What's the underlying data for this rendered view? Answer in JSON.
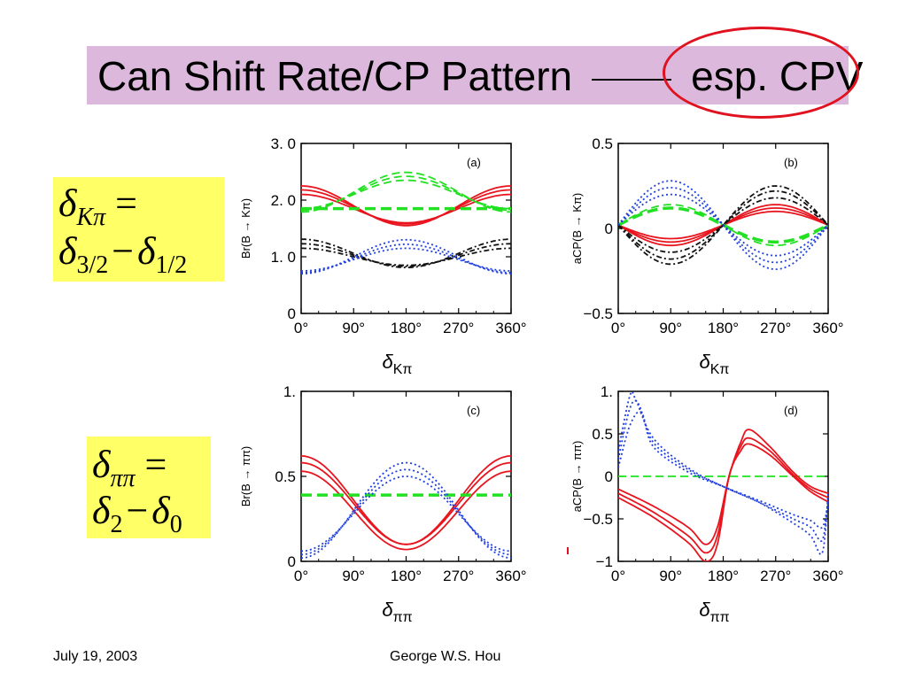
{
  "slide": {
    "title_left": "Can Shift Rate/CP Pattern",
    "title_right": "esp. CPV",
    "footer_date": "July 19, 2003",
    "footer_author": "George W.S. Hou"
  },
  "equations": {
    "kpi": {
      "delta": "δ",
      "sub_lhs": "Kπ",
      "eq": "=",
      "d1": "δ",
      "sub1": "3/2",
      "minus": "−",
      "d2": "δ",
      "sub2": "1/2"
    },
    "pipi": {
      "delta": "δ",
      "sub_lhs": "ππ",
      "eq": "=",
      "d1": "δ",
      "sub1": "2",
      "minus": "−",
      "d2": "δ",
      "sub2": "0"
    }
  },
  "colors": {
    "red": "#e8141e",
    "green": "#22e022",
    "blue": "#1f3fe0",
    "black": "#111111",
    "title_bg": "#dcb8dc",
    "eq_bg": "#ffff66"
  },
  "chart_data": [
    {
      "id": "a",
      "type": "line",
      "panel_label": "(a)",
      "ylabel": "Br(B → Kπ)",
      "xlabel_main": "δ",
      "xlabel_sub": "Kπ",
      "xlim": [
        0,
        360
      ],
      "ylim": [
        0,
        3.0
      ],
      "x_ticks": [
        0,
        90,
        180,
        270,
        360
      ],
      "x_tick_labels": [
        "0°",
        "90°",
        "180°",
        "270°",
        "360°"
      ],
      "y_ticks": [
        0,
        1.0,
        2.0,
        3.0
      ],
      "y_tick_labels": [
        "0",
        "1. 0",
        "2. 0",
        "3. 0"
      ],
      "series": [
        {
          "color": "red",
          "style": "solid",
          "offset": 1.85,
          "amp": 0.25,
          "phase": 0
        },
        {
          "color": "red",
          "style": "solid",
          "offset": 1.88,
          "amp": 0.3,
          "phase": 0
        },
        {
          "color": "red",
          "style": "solid",
          "offset": 1.9,
          "amp": 0.35,
          "phase": 0
        },
        {
          "color": "green",
          "style": "dashed",
          "offset": 2.1,
          "amp": -0.25,
          "phase": 0
        },
        {
          "color": "green",
          "style": "dashed",
          "offset": 2.12,
          "amp": -0.3,
          "phase": 0
        },
        {
          "color": "green",
          "style": "dashed",
          "offset": 2.14,
          "amp": -0.35,
          "phase": 0
        },
        {
          "color": "green",
          "style": "dashed-thick",
          "offset": 1.85,
          "amp": 0.0,
          "phase": 0
        },
        {
          "color": "black",
          "style": "dashdot",
          "offset": 1.0,
          "amp": 0.15,
          "phase": 0
        },
        {
          "color": "black",
          "style": "dashdot",
          "offset": 1.03,
          "amp": 0.2,
          "phase": 0
        },
        {
          "color": "black",
          "style": "dashdot",
          "offset": 1.06,
          "amp": 0.25,
          "phase": 0
        },
        {
          "color": "blue",
          "style": "dotted",
          "offset": 0.95,
          "amp": -0.2,
          "phase": 0
        },
        {
          "color": "blue",
          "style": "dotted",
          "offset": 0.97,
          "amp": -0.25,
          "phase": 0
        },
        {
          "color": "blue",
          "style": "dotted",
          "offset": 1.0,
          "amp": -0.3,
          "phase": 0
        }
      ]
    },
    {
      "id": "b",
      "type": "line",
      "panel_label": "(b)",
      "ylabel": "aCP(B → Kπ)",
      "xlabel_main": "δ",
      "xlabel_sub": "Kπ",
      "xlim": [
        0,
        360
      ],
      "ylim": [
        -0.5,
        0.5
      ],
      "x_ticks": [
        0,
        90,
        180,
        270,
        360
      ],
      "x_tick_labels": [
        "0°",
        "90°",
        "180°",
        "270°",
        "360°"
      ],
      "y_ticks": [
        -0.5,
        0,
        0.5
      ],
      "y_tick_labels": [
        "−0.5",
        "0",
        "0.5"
      ],
      "series": [
        {
          "color": "red",
          "style": "solid",
          "offset": 0.02,
          "amp": -0.08,
          "phase": 90
        },
        {
          "color": "red",
          "style": "solid",
          "offset": 0.02,
          "amp": -0.1,
          "phase": 90
        },
        {
          "color": "red",
          "style": "solid",
          "offset": 0.02,
          "amp": -0.12,
          "phase": 90
        },
        {
          "color": "green",
          "style": "dashed-thick",
          "offset": 0.02,
          "amp": 0.1,
          "phase": 90
        },
        {
          "color": "green",
          "style": "dashed",
          "offset": 0.02,
          "amp": 0.12,
          "phase": 90
        },
        {
          "color": "black",
          "style": "dashdot",
          "offset": 0.02,
          "amp": -0.16,
          "phase": 90
        },
        {
          "color": "black",
          "style": "dashdot",
          "offset": 0.02,
          "amp": -0.2,
          "phase": 90
        },
        {
          "color": "black",
          "style": "dashdot",
          "offset": 0.02,
          "amp": -0.23,
          "phase": 90
        },
        {
          "color": "blue",
          "style": "dotted",
          "offset": 0.02,
          "amp": 0.18,
          "phase": 90
        },
        {
          "color": "blue",
          "style": "dotted",
          "offset": 0.02,
          "amp": 0.22,
          "phase": 90
        },
        {
          "color": "blue",
          "style": "dotted",
          "offset": 0.02,
          "amp": 0.26,
          "phase": 90
        }
      ]
    },
    {
      "id": "c",
      "type": "line",
      "panel_label": "(c)",
      "ylabel": "Br(B → ππ)",
      "xlabel_main": "δ",
      "xlabel_sub": "ππ",
      "xlim": [
        0,
        360
      ],
      "ylim": [
        0,
        1.0
      ],
      "x_ticks": [
        0,
        90,
        180,
        270,
        360
      ],
      "x_tick_labels": [
        "0°",
        "90°",
        "180°",
        "270°",
        "360°"
      ],
      "y_ticks": [
        0,
        0.5,
        1.0
      ],
      "y_tick_labels": [
        "0",
        "0.5",
        "1."
      ],
      "series": [
        {
          "color": "red",
          "style": "solid",
          "offset": 0.36,
          "amp": 0.26,
          "phase": 0
        },
        {
          "color": "red",
          "style": "solid",
          "offset": 0.34,
          "amp": 0.24,
          "phase": 0
        },
        {
          "color": "red",
          "style": "solid",
          "offset": 0.3,
          "amp": 0.23,
          "phase": 0
        },
        {
          "color": "green",
          "style": "dashed-thick",
          "offset": 0.39,
          "amp": 0.0,
          "phase": 0
        },
        {
          "color": "blue",
          "style": "dotted",
          "offset": 0.3,
          "amp": -0.28,
          "phase": 0
        },
        {
          "color": "blue",
          "style": "dotted",
          "offset": 0.29,
          "amp": -0.25,
          "phase": 0
        },
        {
          "color": "blue",
          "style": "dotted",
          "offset": 0.28,
          "amp": -0.22,
          "phase": 0
        }
      ]
    },
    {
      "id": "d",
      "type": "line",
      "panel_label": "(d)",
      "ylabel": "aCP(B → ππ)",
      "xlabel_main": "δ",
      "xlabel_sub": "ππ",
      "xlim": [
        0,
        360
      ],
      "ylim": [
        -1.0,
        1.0
      ],
      "x_ticks": [
        0,
        90,
        180,
        270,
        360
      ],
      "x_tick_labels": [
        "0°",
        "90°",
        "180°",
        "270°",
        "360°"
      ],
      "y_ticks": [
        -1.0,
        -0.5,
        0,
        0.5,
        1.0
      ],
      "y_tick_labels": [
        "−1",
        "−0.5",
        "0",
        "0.5",
        "1."
      ],
      "series": [
        {
          "color": "green",
          "style": "dashed",
          "x": [
            0,
            360
          ],
          "y": [
            0,
            0
          ]
        },
        {
          "color": "red",
          "style": "solid",
          "x": [
            0,
            60,
            120,
            150,
            170,
            190,
            210,
            225,
            260,
            300,
            330,
            360
          ],
          "y": [
            -0.15,
            -0.35,
            -0.6,
            -0.8,
            -0.6,
            0.0,
            0.4,
            0.55,
            0.35,
            0.05,
            -0.12,
            -0.2
          ]
        },
        {
          "color": "red",
          "style": "solid",
          "x": [
            0,
            60,
            120,
            150,
            170,
            190,
            210,
            225,
            260,
            300,
            330,
            360
          ],
          "y": [
            -0.2,
            -0.42,
            -0.7,
            -0.9,
            -0.7,
            0.0,
            0.35,
            0.45,
            0.3,
            0.02,
            -0.15,
            -0.25
          ]
        },
        {
          "color": "red",
          "style": "solid",
          "x": [
            0,
            60,
            120,
            150,
            170,
            190,
            210,
            225,
            260,
            300,
            330,
            360
          ],
          "y": [
            -0.25,
            -0.48,
            -0.78,
            -1.0,
            -0.8,
            0.0,
            0.3,
            0.38,
            0.25,
            0.0,
            -0.18,
            -0.3
          ]
        },
        {
          "color": "blue",
          "style": "dotted",
          "x": [
            0,
            20,
            30,
            60,
            120,
            180,
            240,
            300,
            330,
            350,
            360
          ],
          "y": [
            0.3,
            0.95,
            0.9,
            0.45,
            0.1,
            -0.12,
            -0.3,
            -0.55,
            -0.7,
            -0.9,
            -0.2
          ]
        },
        {
          "color": "blue",
          "style": "dotted",
          "x": [
            0,
            20,
            35,
            60,
            120,
            180,
            240,
            300,
            330,
            350,
            360
          ],
          "y": [
            0.2,
            0.8,
            0.85,
            0.4,
            0.08,
            -0.12,
            -0.3,
            -0.5,
            -0.6,
            -0.75,
            -0.25
          ]
        },
        {
          "color": "blue",
          "style": "dotted",
          "x": [
            0,
            20,
            40,
            60,
            120,
            180,
            240,
            300,
            330,
            350,
            360
          ],
          "y": [
            0.1,
            0.6,
            0.75,
            0.35,
            0.05,
            -0.12,
            -0.28,
            -0.45,
            -0.52,
            -0.6,
            -0.3
          ]
        }
      ]
    }
  ]
}
